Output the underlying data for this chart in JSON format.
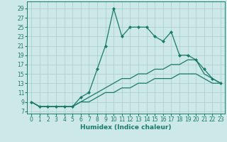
{
  "xlabel": "Humidex (Indice chaleur)",
  "bg_color": "#cce8e8",
  "grid_color": "#aacccc",
  "line_color": "#1a7a6a",
  "xlim": [
    -0.5,
    23.5
  ],
  "ylim": [
    6.5,
    30.5
  ],
  "xticks": [
    0,
    1,
    2,
    3,
    4,
    5,
    6,
    7,
    8,
    9,
    10,
    11,
    12,
    13,
    14,
    15,
    16,
    17,
    18,
    19,
    20,
    21,
    22,
    23
  ],
  "yticks": [
    7,
    9,
    11,
    13,
    15,
    17,
    19,
    21,
    23,
    25,
    27,
    29
  ],
  "series1_x": [
    0,
    1,
    2,
    3,
    4,
    5,
    6,
    7,
    8,
    9,
    10,
    11,
    12,
    13,
    14,
    15,
    16,
    17,
    18,
    19,
    20,
    21,
    22,
    23
  ],
  "series1_y": [
    9,
    8,
    8,
    8,
    8,
    8,
    10,
    11,
    16,
    21,
    29,
    23,
    25,
    25,
    25,
    23,
    22,
    24,
    19,
    19,
    18,
    16,
    14,
    13
  ],
  "series2_x": [
    0,
    1,
    2,
    3,
    4,
    5,
    6,
    7,
    8,
    9,
    10,
    11,
    12,
    13,
    14,
    15,
    16,
    17,
    18,
    19,
    20,
    21,
    22,
    23
  ],
  "series2_y": [
    9,
    8,
    8,
    8,
    8,
    8,
    9,
    10,
    11,
    12,
    13,
    14,
    14,
    15,
    15,
    16,
    16,
    17,
    17,
    18,
    18,
    15,
    14,
    13
  ],
  "series3_x": [
    0,
    1,
    2,
    3,
    4,
    5,
    6,
    7,
    8,
    9,
    10,
    11,
    12,
    13,
    14,
    15,
    16,
    17,
    18,
    19,
    20,
    21,
    22,
    23
  ],
  "series3_y": [
    9,
    8,
    8,
    8,
    8,
    8,
    9,
    9,
    10,
    11,
    11,
    12,
    12,
    13,
    13,
    14,
    14,
    14,
    15,
    15,
    15,
    14,
    13,
    13
  ],
  "tick_fontsize": 5.5,
  "xlabel_fontsize": 6.5
}
